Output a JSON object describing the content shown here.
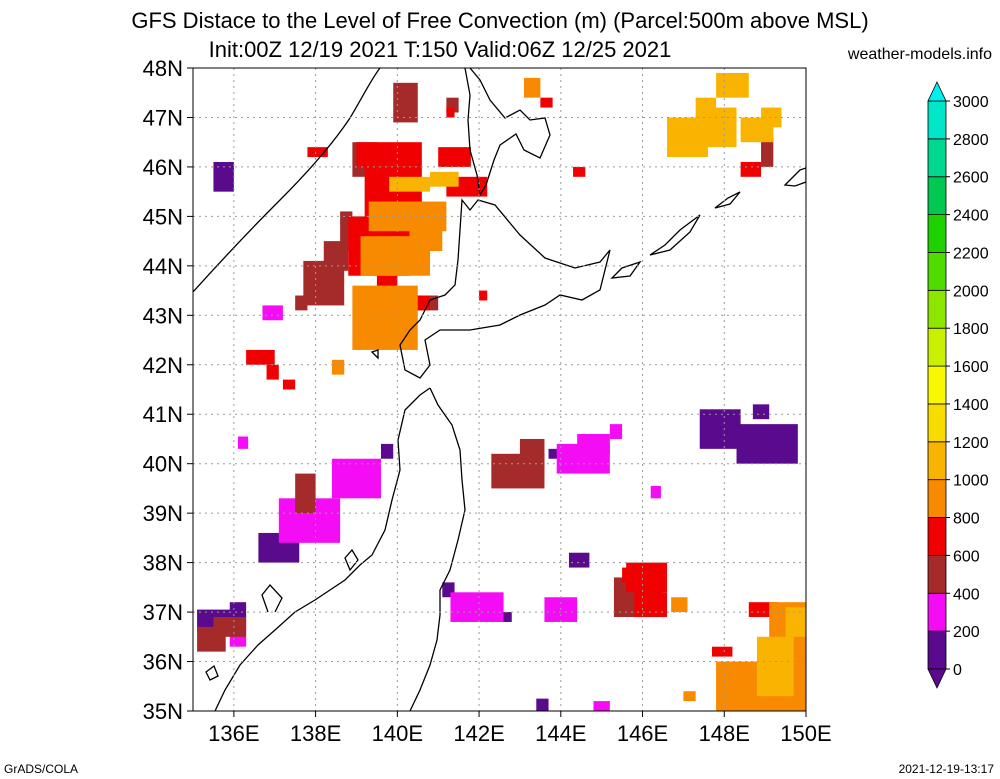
{
  "header": {
    "title_line1": "GFS Distace to the Level of Free Convection (m) (Parcel:500m above MSL)",
    "title_line2": "Init:00Z 12/19 2021 T:150 Valid:06Z 12/25 2021",
    "site": "weather-models.info"
  },
  "footer": {
    "left": "GrADS/COLA",
    "right": "2021-12-19-13:17"
  },
  "map": {
    "lon_range": [
      135,
      150
    ],
    "lat_range": [
      35,
      48
    ],
    "x_ticks": [
      "136E",
      "138E",
      "140E",
      "142E",
      "144E",
      "146E",
      "148E",
      "150E"
    ],
    "y_ticks": [
      "35N",
      "36N",
      "37N",
      "38N",
      "39N",
      "40N",
      "41N",
      "42N",
      "43N",
      "44N",
      "45N",
      "46N",
      "47N",
      "48N"
    ],
    "gridlines": "dotted"
  },
  "colorbar": {
    "labels": [
      "0",
      "200",
      "400",
      "600",
      "800",
      "1000",
      "1200",
      "1400",
      "1600",
      "1800",
      "2000",
      "2200",
      "2400",
      "2600",
      "2800",
      "3000"
    ],
    "colors": [
      "#5a0a8c",
      "#f40cf4",
      "#a52a2a",
      "#f00000",
      "#f88a00",
      "#f8b400",
      "#f8dc00",
      "#f8f800",
      "#c8f000",
      "#8ce600",
      "#50dc00",
      "#1ed200",
      "#00c850",
      "#00d890",
      "#00e6c8",
      "#00f0f0"
    ]
  },
  "field": [
    {
      "c": 0,
      "cells": [
        [
          135.5,
          45.5,
          0.5,
          0.6
        ],
        [
          135.1,
          36.6,
          0.9,
          0.45
        ],
        [
          135.9,
          36.8,
          0.4,
          0.4
        ],
        [
          136.6,
          38.0,
          1.0,
          0.6
        ],
        [
          147.4,
          40.3,
          1.0,
          0.8
        ],
        [
          148.3,
          40.0,
          1.5,
          0.8
        ],
        [
          148.7,
          40.9,
          0.4,
          0.3
        ],
        [
          144.2,
          37.9,
          0.5,
          0.3
        ],
        [
          141.1,
          37.3,
          0.3,
          0.3
        ],
        [
          142.5,
          36.8,
          0.3,
          0.2
        ],
        [
          143.4,
          35.0,
          0.3,
          0.25
        ],
        [
          139.6,
          40.1,
          0.3,
          0.3
        ],
        [
          143.7,
          40.1,
          0.3,
          0.2
        ]
      ]
    },
    {
      "c": 1,
      "cells": [
        [
          136.1,
          40.3,
          0.25,
          0.25
        ],
        [
          137.1,
          38.4,
          1.5,
          0.9
        ],
        [
          138.4,
          39.3,
          1.2,
          0.8
        ],
        [
          141.3,
          36.8,
          1.3,
          0.6
        ],
        [
          143.9,
          39.8,
          1.3,
          0.6
        ],
        [
          144.4,
          40.2,
          0.8,
          0.4
        ],
        [
          143.6,
          36.8,
          0.8,
          0.5
        ],
        [
          146.2,
          39.3,
          0.25,
          0.25
        ],
        [
          145.2,
          40.5,
          0.3,
          0.3
        ],
        [
          136.7,
          42.9,
          0.5,
          0.3
        ],
        [
          135.9,
          36.3,
          0.4,
          0.5
        ],
        [
          144.8,
          35.0,
          0.4,
          0.2
        ],
        [
          139.1,
          42.8,
          0.4,
          0.3
        ]
      ]
    },
    {
      "c": 2,
      "cells": [
        [
          137.7,
          43.2,
          1.0,
          0.9
        ],
        [
          138.2,
          43.9,
          0.6,
          0.6
        ],
        [
          138.6,
          44.3,
          0.3,
          0.8
        ],
        [
          138.9,
          45.8,
          0.6,
          0.7
        ],
        [
          139.9,
          46.9,
          0.6,
          0.8
        ],
        [
          142.3,
          39.5,
          1.3,
          0.7
        ],
        [
          143.0,
          39.9,
          0.6,
          0.6
        ],
        [
          145.3,
          36.9,
          1.2,
          0.8
        ],
        [
          137.5,
          39.0,
          0.5,
          0.8
        ],
        [
          137.5,
          43.1,
          0.3,
          0.3
        ],
        [
          140.4,
          43.1,
          0.6,
          0.3
        ],
        [
          141.2,
          47.1,
          0.3,
          0.3
        ],
        [
          135.1,
          36.2,
          0.7,
          0.5
        ],
        [
          148.9,
          46.0,
          0.3,
          0.6
        ],
        [
          135.5,
          36.5,
          0.8,
          0.4
        ]
      ]
    },
    {
      "c": 3,
      "cells": [
        [
          139.0,
          46.0,
          1.6,
          0.5
        ],
        [
          139.2,
          45.0,
          1.4,
          1.0
        ],
        [
          138.8,
          43.8,
          1.5,
          1.2
        ],
        [
          139.5,
          43.2,
          0.5,
          0.6
        ],
        [
          141.2,
          45.4,
          1.0,
          0.4
        ],
        [
          141.0,
          46.0,
          0.8,
          0.4
        ],
        [
          140.0,
          43.1,
          0.8,
          0.3
        ],
        [
          136.3,
          42.0,
          0.7,
          0.3
        ],
        [
          136.8,
          41.7,
          0.3,
          0.3
        ],
        [
          137.2,
          41.5,
          0.3,
          0.2
        ],
        [
          145.6,
          37.4,
          1.0,
          0.6
        ],
        [
          145.8,
          36.9,
          0.8,
          0.5
        ],
        [
          137.8,
          46.2,
          0.5,
          0.2
        ],
        [
          145.5,
          37.6,
          0.7,
          0.3
        ],
        [
          147.7,
          36.1,
          0.5,
          0.2
        ],
        [
          148.4,
          45.8,
          0.5,
          0.3
        ],
        [
          144.3,
          45.8,
          0.3,
          0.2
        ],
        [
          142.0,
          43.3,
          0.2,
          0.2
        ],
        [
          148.6,
          36.9,
          0.7,
          0.3
        ],
        [
          141.2,
          47.0,
          0.2,
          0.2
        ],
        [
          143.5,
          47.2,
          0.3,
          0.2
        ]
      ]
    },
    {
      "c": 4,
      "cells": [
        [
          138.9,
          42.3,
          1.6,
          1.3
        ],
        [
          139.1,
          43.8,
          1.7,
          0.8
        ],
        [
          139.3,
          44.7,
          1.9,
          0.6
        ],
        [
          140.3,
          44.3,
          0.8,
          0.5
        ],
        [
          138.4,
          41.8,
          0.3,
          0.3
        ],
        [
          147.8,
          35.0,
          2.2,
          1.0
        ],
        [
          149.1,
          35.0,
          0.9,
          2.2
        ],
        [
          143.1,
          47.4,
          0.4,
          0.4
        ],
        [
          146.7,
          37.0,
          0.4,
          0.3
        ],
        [
          147.0,
          35.2,
          0.3,
          0.2
        ]
      ]
    },
    {
      "c": 5,
      "cells": [
        [
          146.6,
          46.2,
          1.0,
          0.8
        ],
        [
          147.4,
          46.4,
          0.9,
          0.8
        ],
        [
          148.4,
          46.5,
          0.8,
          0.5
        ],
        [
          147.8,
          47.4,
          0.8,
          0.5
        ],
        [
          148.9,
          46.8,
          0.5,
          0.4
        ],
        [
          139.8,
          45.5,
          1.0,
          0.3
        ],
        [
          140.8,
          45.6,
          0.7,
          0.3
        ],
        [
          147.3,
          47.0,
          0.5,
          0.4
        ],
        [
          148.8,
          35.3,
          0.9,
          1.2
        ],
        [
          149.5,
          36.5,
          0.5,
          0.6
        ]
      ]
    }
  ]
}
